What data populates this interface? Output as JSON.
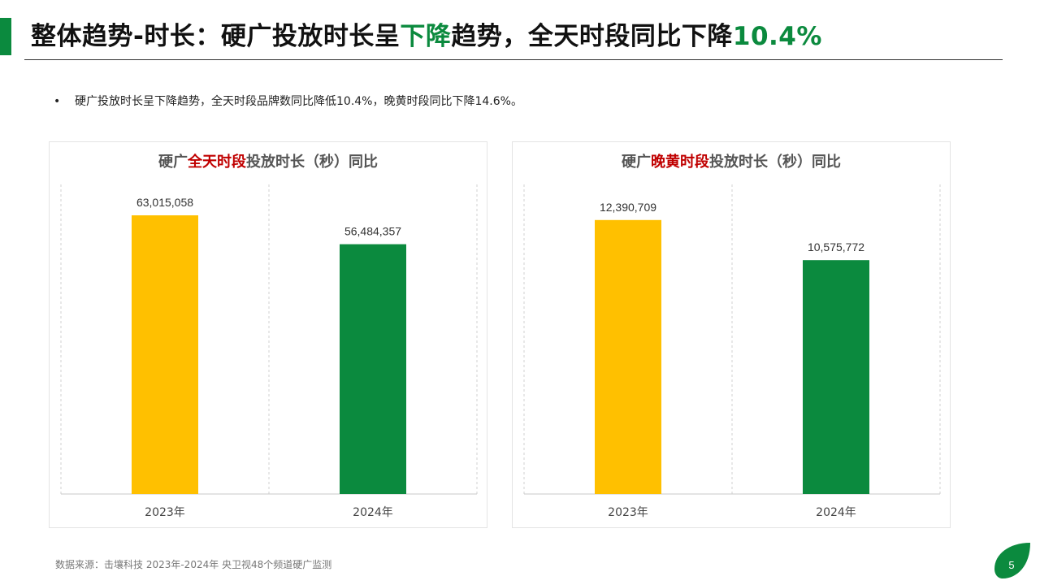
{
  "header": {
    "title_part1": "整体趋势-时长：硬广投放时长呈",
    "title_highlight1": "下降",
    "title_part2": "趋势，全天时段同比下降",
    "title_highlight2": "10.4%",
    "accent_color": "#0b8a3e"
  },
  "bullet": {
    "symbol": "•",
    "text": "硬广投放时长呈下降趋势，全天时段品牌数同比降低10.4%，晚黄时段同比下降14.6%。"
  },
  "panels": [
    {
      "title_prefix": "硬广",
      "title_highlight": "全天时段",
      "title_suffix": "投放时长（秒）同比"
    },
    {
      "title_prefix": "硬广",
      "title_highlight": "晚黄时段",
      "title_suffix": "投放时长（秒）同比"
    }
  ],
  "chart_data": [
    {
      "type": "bar",
      "title": "硬广全天时段投放时长（秒）同比",
      "categories": [
        "2023年",
        "2024年"
      ],
      "values": [
        63015058,
        56484357
      ],
      "value_labels": [
        "63,015,058",
        "56,484,357"
      ],
      "colors": [
        "#ffc000",
        "#0b8a3e"
      ],
      "ylim": [
        0,
        70000000
      ],
      "grid": "vertical dashed separators"
    },
    {
      "type": "bar",
      "title": "硬广晚黄时段投放时长（秒）同比",
      "categories": [
        "2023年",
        "2024年"
      ],
      "values": [
        12390709,
        10575772
      ],
      "value_labels": [
        "12,390,709",
        "10,575,772"
      ],
      "colors": [
        "#ffc000",
        "#0b8a3e"
      ],
      "ylim": [
        0,
        14000000
      ],
      "grid": "vertical dashed separators"
    }
  ],
  "footer": {
    "source": "数据来源：击壤科技  2023年-2024年 央卫视48个频道硬广监测",
    "page_number": "5",
    "page_badge_color": "#0b8a3e"
  }
}
